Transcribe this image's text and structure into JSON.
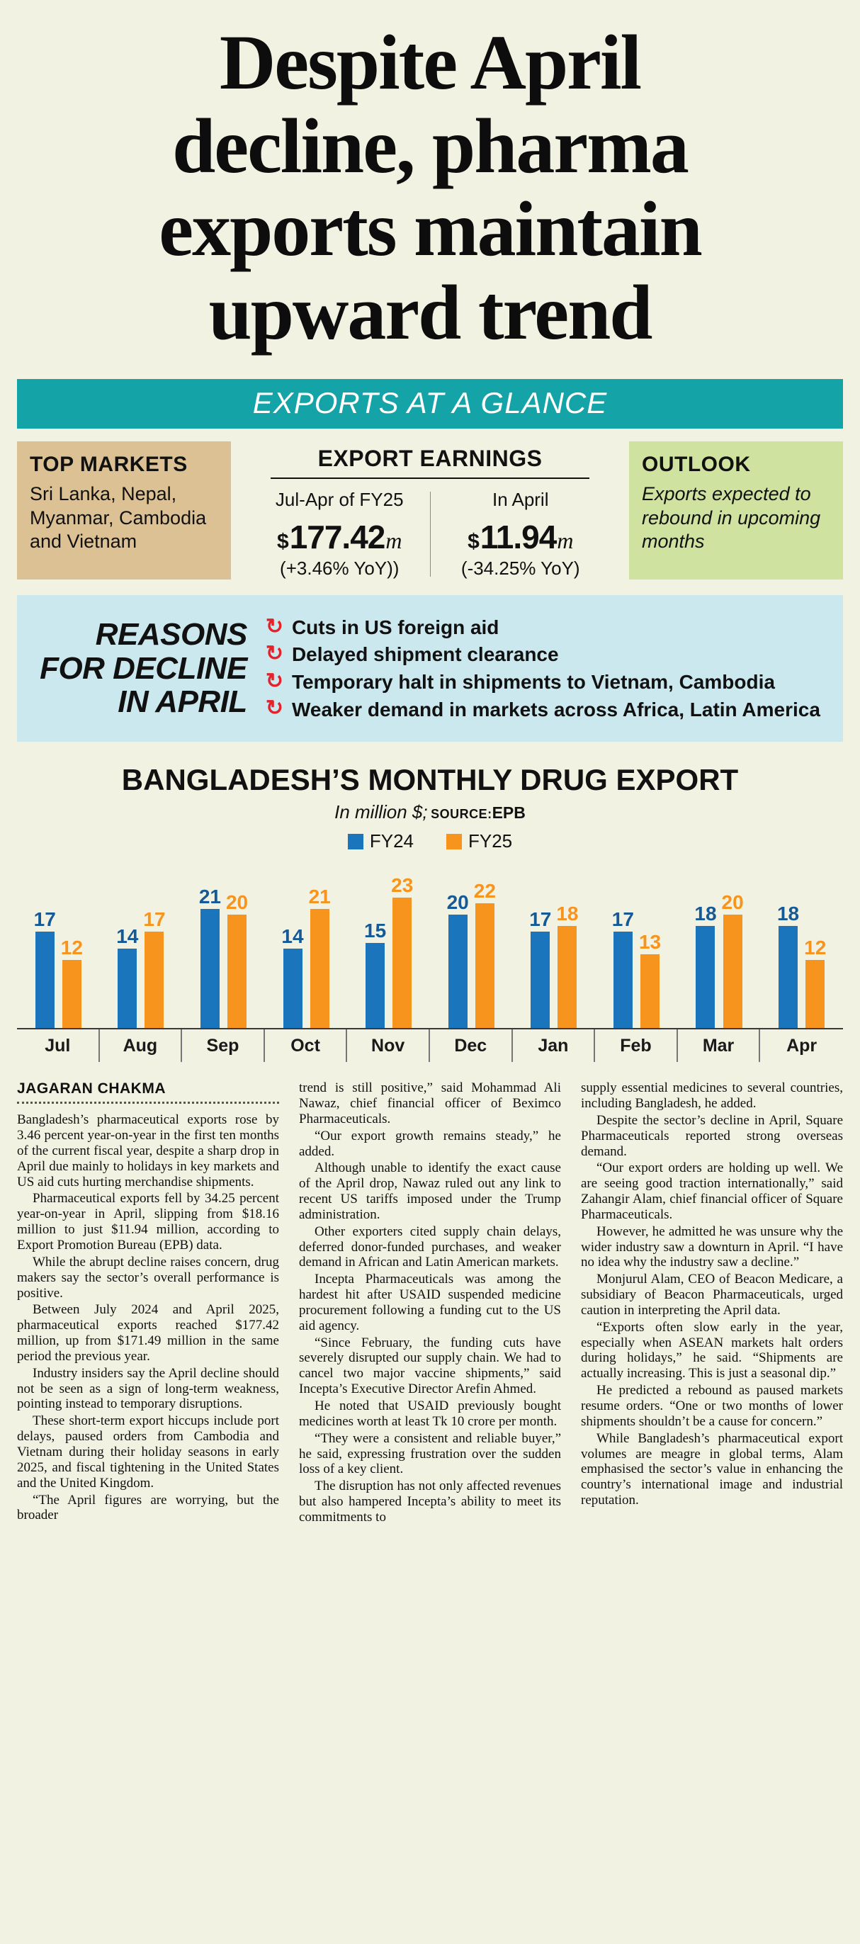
{
  "colors": {
    "background": "#f1f2e2",
    "teal_banner": "#14a3a6",
    "tan_box": "#dbc193",
    "green_box": "#cfe2a0",
    "light_blue_box": "#cbe8ef",
    "red_accent": "#e62129",
    "fy24_bar": "#1b75bc",
    "fy25_bar": "#f7941d",
    "fy24_label": "#155a96",
    "fy25_label": "#f7941d"
  },
  "headline_lines": [
    "Despite April",
    "decline, pharma",
    "exports maintain",
    "upward trend"
  ],
  "banner": {
    "text": "EXPORTS AT A GLANCE"
  },
  "glance": {
    "top_markets": {
      "title": "TOP MARKETS",
      "body": "Sri Lanka, Nepal, Myanmar, Cambodia and Vietnam"
    },
    "earnings": {
      "title": "EXPORT EARNINGS",
      "periods": [
        {
          "label": "Jul-Apr of FY25",
          "currency": "$",
          "value": "177.42",
          "unit": "m",
          "change": "(+3.46% YoY))"
        },
        {
          "label": "In April",
          "currency": "$",
          "value": "11.94",
          "unit": "m",
          "change": "(-34.25% YoY)"
        }
      ]
    },
    "outlook": {
      "title": "OUTLOOK",
      "body": "Exports expected to rebound in upcoming months"
    }
  },
  "reasons": {
    "title_lines": [
      "REASONS",
      "FOR DECLINE",
      "IN APRIL"
    ],
    "items": [
      "Cuts in US foreign aid",
      "Delayed shipment clearance",
      "Temporary halt in shipments to Vietnam, Cambodia",
      "Weaker demand in markets across Africa, Latin America"
    ]
  },
  "chart_data": {
    "type": "bar",
    "title": "BANGLADESH’S MONTHLY DRUG EXPORT",
    "subtitle_italic": "In million $;",
    "source_label": "SOURCE:",
    "source_value": "EPB",
    "categories": [
      "Jul",
      "Aug",
      "Sep",
      "Oct",
      "Nov",
      "Dec",
      "Jan",
      "Feb",
      "Mar",
      "Apr"
    ],
    "series": [
      {
        "name": "FY24",
        "color": "#1b75bc",
        "values": [
          17,
          14,
          21,
          14,
          15,
          20,
          17,
          17,
          18,
          18
        ]
      },
      {
        "name": "FY25",
        "color": "#f7941d",
        "values": [
          12,
          17,
          20,
          21,
          23,
          22,
          18,
          13,
          20,
          12
        ]
      }
    ],
    "ylim": [
      0,
      23
    ],
    "grid": false,
    "legend_position": "top"
  },
  "article": {
    "byline": "JAGARAN CHAKMA",
    "columns": [
      {
        "paragraphs": [
          "Bangladesh’s pharmaceutical exports rose by 3.46 percent year-on-year in the first ten months of the current fiscal year, despite a sharp drop in April due mainly to holidays in key markets and US aid cuts hurting merchandise shipments.",
          "Pharmaceutical exports fell by 34.25 percent year-on-year in April, slipping from $18.16 million to just $11.94 million, according to Export Promotion Bureau (EPB) data.",
          "While the abrupt decline raises concern, drug makers say the sector’s overall performance is positive.",
          "Between July 2024 and April 2025, pharmaceutical exports reached $177.42 million, up from $171.49 million in the same period the previous year.",
          "Industry insiders say the April decline should not be seen as a sign of long-term weakness, pointing instead to temporary disruptions.",
          "These short-term export hiccups include port delays, paused orders from Cambodia and Vietnam during their holiday seasons in early 2025, and fiscal tightening in the United States and the United Kingdom.",
          "“The April figures are worrying, but the broader"
        ]
      },
      {
        "paragraphs": [
          "trend is still positive,” said Mohammad Ali Nawaz, chief financial officer of Beximco Pharmaceuticals.",
          "“Our export growth remains steady,” he added.",
          "Although unable to identify the exact cause of the April drop, Nawaz ruled out any link to recent US tariffs imposed under the Trump administration.",
          "Other exporters cited supply chain delays, deferred donor-funded purchases, and weaker demand in African and Latin American markets.",
          "Incepta Pharmaceuticals was among the hardest hit after USAID suspended medicine procurement following a funding cut to the US aid agency.",
          "“Since February, the funding cuts have severely disrupted our supply chain. We had to cancel two major vaccine shipments,” said Incepta’s Executive Director Arefin Ahmed.",
          "He noted that USAID previously bought medicines worth at least Tk 10 crore per month.",
          "“They were a consistent and reliable buyer,” he said, expressing frustration over the sudden loss of a key client.",
          "The disruption has not only affected revenues but also hampered Incepta’s ability to meet its commitments to"
        ]
      },
      {
        "paragraphs": [
          "supply essential medicines to several countries, including Bangladesh, he added.",
          "Despite the sector’s decline in April, Square Pharmaceuticals reported strong overseas demand.",
          "“Our export orders are holding up well. We are seeing good traction internationally,” said Zahangir Alam, chief financial officer of Square Pharmaceuticals.",
          "However, he admitted he was unsure why the wider industry saw a downturn in April. “I have no idea why the industry saw a decline.”",
          "Monjurul Alam, CEO of Beacon Medicare, a subsidiary of Beacon Pharmaceuticals, urged caution in interpreting the April data.",
          "“Exports often slow early in the year, especially when ASEAN markets halt orders during holidays,” he said. “Shipments are actually increasing. This is just a seasonal dip.”",
          "He predicted a rebound as paused markets resume orders. “One or two months of lower shipments shouldn’t be a cause for concern.”",
          "While Bangladesh’s pharmaceutical export volumes are meagre in global terms, Alam emphasised the sector’s value in enhancing the country’s international image and industrial reputation."
        ]
      }
    ]
  }
}
